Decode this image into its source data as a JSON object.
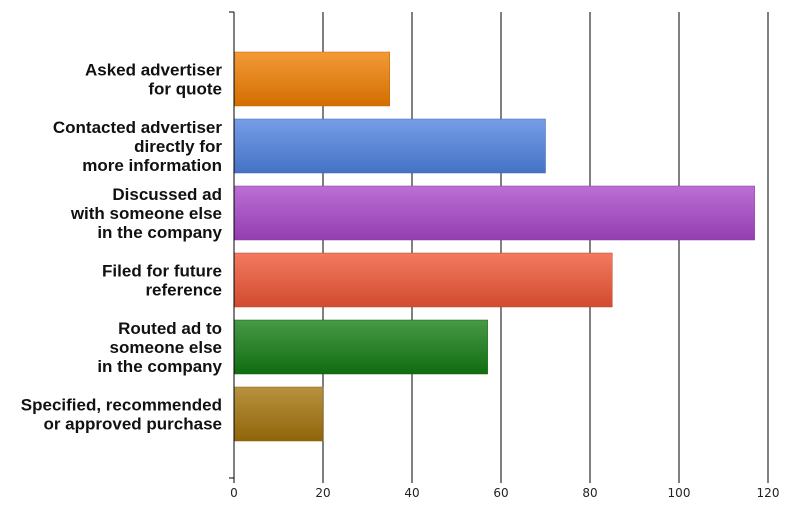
{
  "chart_data": {
    "type": "bar",
    "orientation": "horizontal",
    "categories": [
      [
        "Asked advertiser",
        "for quote"
      ],
      [
        "Contacted advertiser",
        "directly for",
        "more information"
      ],
      [
        "Discussed ad",
        "with someone else",
        "in the company"
      ],
      [
        "Filed for future",
        "reference"
      ],
      [
        "Routed ad to",
        "someone else",
        "in the company"
      ],
      [
        "Specified, recommended",
        "or approved purchase"
      ]
    ],
    "values": [
      35,
      70,
      117,
      85,
      57,
      20
    ],
    "colors": [
      "#f07d00",
      "#4f81e0",
      "#a846c8",
      "#ee5535",
      "#137c13",
      "#a4730a"
    ],
    "xlim": [
      0,
      120
    ],
    "xticks": [
      0,
      20,
      40,
      60,
      80,
      100,
      120
    ],
    "grid": true,
    "title": "",
    "xlabel": "",
    "ylabel": ""
  }
}
